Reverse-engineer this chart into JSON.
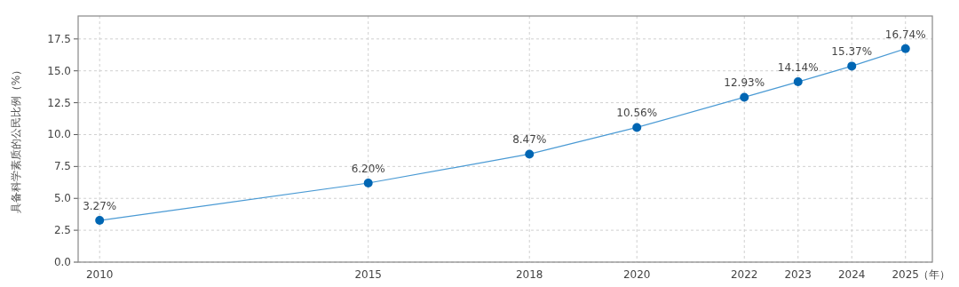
{
  "chart_data": {
    "type": "line",
    "ylabel": "具备科学素质的公民比例（%）",
    "xlabel": "（年）",
    "x": [
      2010,
      2015,
      2018,
      2020,
      2022,
      2023,
      2024,
      2025
    ],
    "series": [
      {
        "color": "#0066b3",
        "values": [
          3.27,
          6.2,
          8.47,
          10.56,
          12.93,
          14.14,
          15.37,
          16.74
        ],
        "value_labels": [
          "3.27%",
          "6.20%",
          "8.47%",
          "10.56%",
          "12.93%",
          "14.14%",
          "15.37%",
          "16.74%"
        ]
      }
    ],
    "xlim": [
      2009.6,
      2025.5
    ],
    "xticks": [
      2010,
      2015,
      2018,
      2020,
      2022,
      2023,
      2024,
      2025
    ],
    "ylim": [
      0,
      19.3
    ],
    "yticks": [
      {
        "value": 0,
        "label": "0.0"
      },
      {
        "value": 2.5,
        "label": "2.5"
      },
      {
        "value": 5,
        "label": "5.0"
      },
      {
        "value": 7.5,
        "label": "7.5"
      },
      {
        "value": 10,
        "label": "10.0"
      },
      {
        "value": 12.5,
        "label": "12.5"
      },
      {
        "value": 15,
        "label": "15.0"
      },
      {
        "value": 17.5,
        "label": "17.5"
      }
    ],
    "grid": true,
    "marker": "circle",
    "line_style": "solid"
  }
}
